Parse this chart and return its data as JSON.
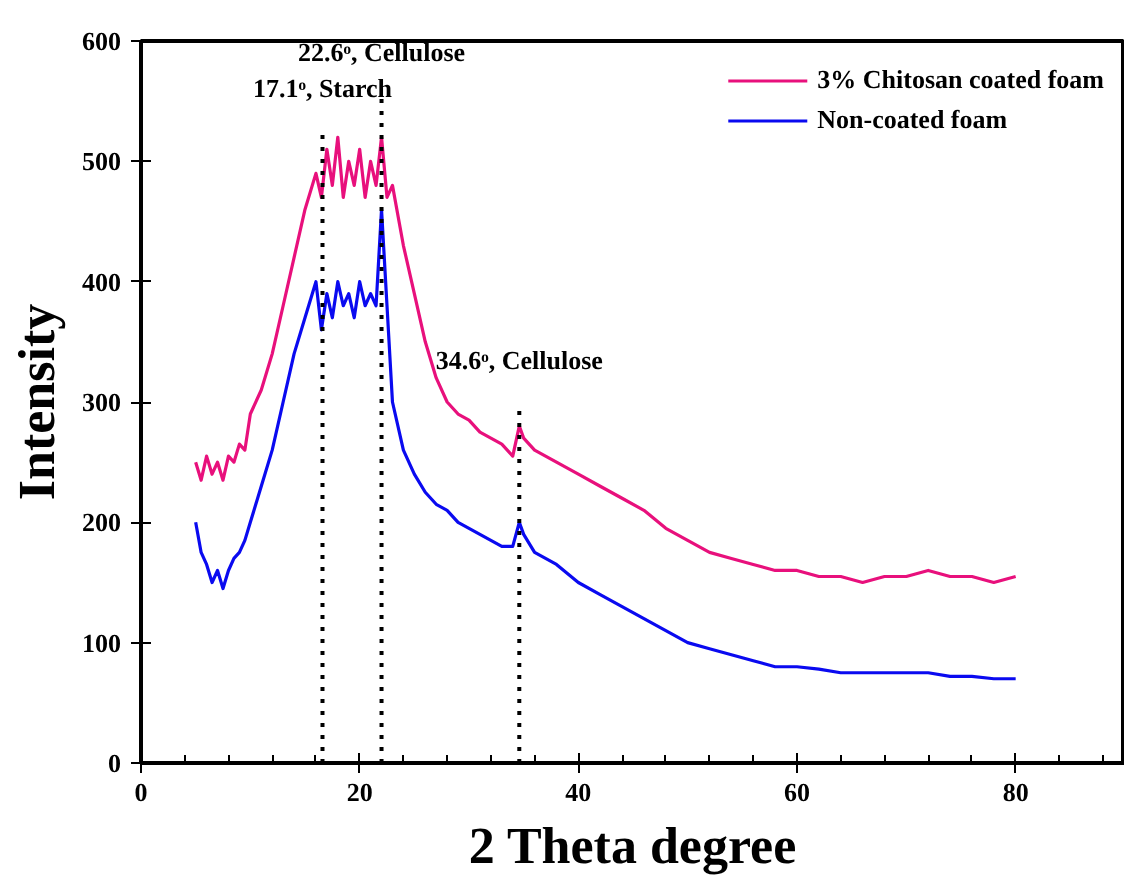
{
  "chart_data": {
    "type": "line",
    "xlabel": "2 Theta degree",
    "ylabel": "Intensity",
    "xlim": [
      0,
      90
    ],
    "ylim": [
      0,
      600
    ],
    "xticks": [
      0,
      20,
      40,
      60,
      80
    ],
    "yticks": [
      0,
      100,
      200,
      300,
      400,
      500,
      600
    ],
    "grid": false,
    "legend": "top right",
    "line_style": "solid",
    "marker": "none",
    "series": [
      {
        "name": "3% Chitosan coated foam",
        "color": "#e8107c",
        "x": [
          5,
          5.5,
          6,
          6.5,
          7,
          7.5,
          8,
          8.5,
          9,
          9.5,
          10,
          11,
          12,
          13,
          14,
          15,
          16,
          16.5,
          17,
          17.5,
          18,
          18.5,
          19,
          19.5,
          20,
          20.5,
          21,
          21.5,
          22,
          22.5,
          23,
          24,
          25,
          26,
          27,
          28,
          29,
          30,
          31,
          32,
          33,
          34,
          34.6,
          35,
          36,
          38,
          40,
          42,
          44,
          46,
          48,
          50,
          52,
          54,
          56,
          58,
          60,
          62,
          64,
          66,
          68,
          70,
          72,
          74,
          76,
          78,
          80
        ],
        "values": [
          250,
          235,
          255,
          240,
          250,
          235,
          255,
          250,
          265,
          260,
          290,
          310,
          340,
          380,
          420,
          460,
          490,
          470,
          510,
          480,
          520,
          470,
          500,
          480,
          510,
          470,
          500,
          480,
          520,
          470,
          480,
          430,
          390,
          350,
          320,
          300,
          290,
          285,
          275,
          270,
          265,
          255,
          280,
          270,
          260,
          250,
          240,
          230,
          220,
          210,
          195,
          185,
          175,
          170,
          165,
          160,
          160,
          155,
          155,
          150,
          155,
          155,
          160,
          155,
          155,
          150,
          155
        ]
      },
      {
        "name": "Non-coated foam",
        "color": "#0a0af0",
        "x": [
          5,
          5.5,
          6,
          6.5,
          7,
          7.5,
          8,
          8.5,
          9,
          9.5,
          10,
          11,
          12,
          13,
          14,
          15,
          16,
          16.5,
          17,
          17.5,
          18,
          18.5,
          19,
          19.5,
          20,
          20.5,
          21,
          21.5,
          22,
          22.5,
          23,
          24,
          25,
          26,
          27,
          28,
          29,
          30,
          31,
          32,
          33,
          34,
          34.6,
          35,
          36,
          38,
          40,
          42,
          44,
          46,
          48,
          50,
          52,
          54,
          56,
          58,
          60,
          62,
          64,
          66,
          68,
          70,
          72,
          74,
          76,
          78,
          80
        ],
        "values": [
          200,
          175,
          165,
          150,
          160,
          145,
          160,
          170,
          175,
          185,
          200,
          230,
          260,
          300,
          340,
          370,
          400,
          360,
          390,
          370,
          400,
          380,
          390,
          370,
          400,
          380,
          390,
          380,
          460,
          380,
          300,
          260,
          240,
          225,
          215,
          210,
          200,
          195,
          190,
          185,
          180,
          180,
          200,
          190,
          175,
          165,
          150,
          140,
          130,
          120,
          110,
          100,
          95,
          90,
          85,
          80,
          80,
          78,
          75,
          75,
          75,
          75,
          75,
          72,
          72,
          70,
          70
        ]
      }
    ],
    "ref_lines": [
      {
        "axis": "x",
        "value": 16.6,
        "line_style": "dotted",
        "color": "#000000"
      },
      {
        "axis": "x",
        "value": 22,
        "line_style": "dotted",
        "color": "#000000"
      },
      {
        "axis": "x",
        "value": 34.6,
        "line_style": "dotted",
        "color": "#000000"
      }
    ],
    "annotations": [
      {
        "text": "17.1ᵒ, Starch",
        "x": 16.6,
        "y": 525
      },
      {
        "text": "22.6ᵒ, Cellulose",
        "x": 22,
        "y": 555
      },
      {
        "text": "34.6ᵒ, Cellulose",
        "x": 34.6,
        "y": 299
      }
    ]
  }
}
